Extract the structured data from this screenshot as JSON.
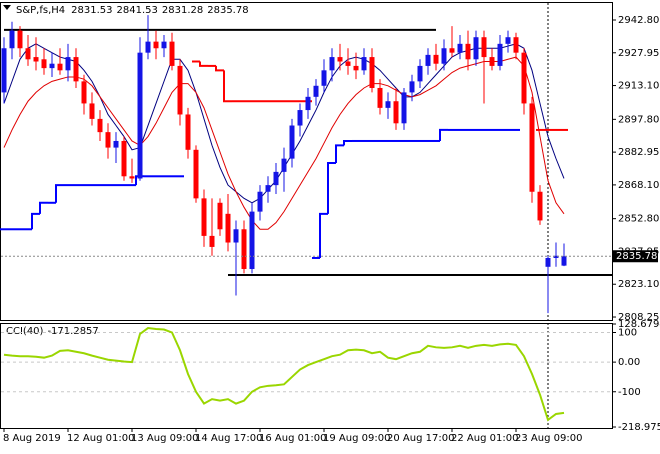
{
  "chart_data": [
    {
      "type": "candlestick",
      "title": "S&P,fs,H4",
      "up_color": "#1414e6",
      "down_color": "#ff0000",
      "categories": [
        "8 Aug 2019",
        null,
        null,
        null,
        null,
        null,
        null,
        null,
        "12 Aug 01:00",
        null,
        null,
        null,
        null,
        null,
        null,
        null,
        "13 Aug 09:00",
        null,
        null,
        null,
        null,
        null,
        null,
        null,
        "14 Aug 17:00",
        null,
        null,
        null,
        null,
        null,
        null,
        null,
        "16 Aug 01:00",
        null,
        null,
        null,
        null,
        null,
        null,
        null,
        "19 Aug 09:00",
        null,
        null,
        null,
        null,
        null,
        null,
        null,
        "20 Aug 17:00",
        null,
        null,
        null,
        null,
        null,
        null,
        null,
        "22 Aug 01:00",
        null,
        null,
        null,
        null,
        null,
        null,
        null,
        "23 Aug 09:00",
        null,
        null,
        null,
        null,
        null,
        null
      ],
      "ohlc": [
        [
          2910,
          2935,
          2905,
          2930
        ],
        [
          2930,
          2942,
          2925,
          2938
        ],
        [
          2938,
          2940,
          2926,
          2930
        ],
        [
          2930,
          2936,
          2922,
          2925
        ],
        [
          2926,
          2935,
          2920,
          2924
        ],
        [
          2925,
          2930,
          2918,
          2921
        ],
        [
          2921,
          2928,
          2917,
          2923
        ],
        [
          2923,
          2930,
          2918,
          2920
        ],
        [
          2920,
          2932,
          2915,
          2926
        ],
        [
          2926,
          2930,
          2912,
          2915
        ],
        [
          2915,
          2918,
          2900,
          2905
        ],
        [
          2905,
          2910,
          2895,
          2898
        ],
        [
          2898,
          2902,
          2888,
          2892
        ],
        [
          2892,
          2896,
          2880,
          2885
        ],
        [
          2885,
          2892,
          2878,
          2888
        ],
        [
          2888,
          2890,
          2870,
          2872
        ],
        [
          2872,
          2880,
          2869,
          2871
        ],
        [
          2871,
          2935,
          2870,
          2928
        ],
        [
          2928,
          2945,
          2925,
          2933
        ],
        [
          2933,
          2938,
          2925,
          2930
        ],
        [
          2930,
          2936,
          2926,
          2933
        ],
        [
          2933,
          2937,
          2920,
          2922
        ],
        [
          2922,
          2925,
          2895,
          2900
        ],
        [
          2900,
          2903,
          2880,
          2884
        ],
        [
          2884,
          2886,
          2860,
          2862
        ],
        [
          2862,
          2866,
          2840,
          2845
        ],
        [
          2845,
          2862,
          2836,
          2840
        ],
        [
          2860,
          2862,
          2845,
          2848
        ],
        [
          2855,
          2864,
          2838,
          2842
        ],
        [
          2842,
          2852,
          2818,
          2848
        ],
        [
          2848,
          2852,
          2828,
          2830
        ],
        [
          2830,
          2860,
          2828,
          2856
        ],
        [
          2856,
          2868,
          2852,
          2865
        ],
        [
          2865,
          2872,
          2860,
          2868
        ],
        [
          2868,
          2878,
          2864,
          2874
        ],
        [
          2874,
          2885,
          2865,
          2880
        ],
        [
          2880,
          2898,
          2876,
          2895
        ],
        [
          2895,
          2905,
          2890,
          2902
        ],
        [
          2902,
          2912,
          2898,
          2908
        ],
        [
          2908,
          2916,
          2904,
          2913
        ],
        [
          2913,
          2925,
          2910,
          2920
        ],
        [
          2920,
          2930,
          2915,
          2926
        ],
        [
          2926,
          2932,
          2920,
          2924
        ],
        [
          2924,
          2930,
          2918,
          2922
        ],
        [
          2922,
          2928,
          2916,
          2920
        ],
        [
          2920,
          2930,
          2918,
          2926
        ],
        [
          2926,
          2930,
          2910,
          2912
        ],
        [
          2912,
          2916,
          2900,
          2903
        ],
        [
          2903,
          2910,
          2898,
          2906
        ],
        [
          2906,
          2912,
          2893,
          2896
        ],
        [
          2896,
          2912,
          2893,
          2910
        ],
        [
          2910,
          2918,
          2906,
          2915
        ],
        [
          2915,
          2925,
          2912,
          2922
        ],
        [
          2922,
          2930,
          2918,
          2927
        ],
        [
          2927,
          2932,
          2920,
          2923
        ],
        [
          2923,
          2934,
          2920,
          2930
        ],
        [
          2930,
          2940,
          2926,
          2928
        ],
        [
          2928,
          2936,
          2925,
          2932
        ],
        [
          2932,
          2938,
          2920,
          2925
        ],
        [
          2925,
          2938,
          2922,
          2935
        ],
        [
          2935,
          2938,
          2905,
          2926
        ],
        [
          2926,
          2930,
          2920,
          2922
        ],
        [
          2922,
          2936,
          2920,
          2932
        ],
        [
          2932,
          2938,
          2928,
          2935
        ],
        [
          2935,
          2937,
          2925,
          2928
        ],
        [
          2928,
          2930,
          2900,
          2905
        ],
        [
          2905,
          2908,
          2860,
          2865
        ],
        [
          2865,
          2868,
          2850,
          2852
        ],
        [
          2831,
          2836,
          2810,
          2835
        ],
        [
          2835,
          2842,
          2831,
          2836
        ],
        [
          2831.53,
          2841.53,
          2831.28,
          2835.78
        ]
      ],
      "lines": [
        {
          "color": "#000080",
          "style": "line",
          "values": [
            2905,
            2915,
            2925,
            2930,
            2932,
            2930,
            2928,
            2926,
            2925,
            2924,
            2920,
            2915,
            2908,
            2900,
            2895,
            2890,
            2884,
            2885,
            2895,
            2905,
            2915,
            2925,
            2925,
            2920,
            2910,
            2898,
            2886,
            2876,
            2868,
            2865,
            2862,
            2860,
            2862,
            2866,
            2870,
            2876,
            2882,
            2888,
            2895,
            2902,
            2910,
            2917,
            2922,
            2925,
            2926,
            2925,
            2923,
            2920,
            2916,
            2912,
            2908,
            2908,
            2910,
            2914,
            2918,
            2922,
            2926,
            2928,
            2929,
            2930,
            2930,
            2930,
            2930,
            2931,
            2932,
            2930,
            2920,
            2905,
            2890,
            2880,
            2871
          ]
        },
        {
          "color": "#e00000",
          "style": "line",
          "values": [
            2885,
            2893,
            2900,
            2906,
            2910,
            2913,
            2915,
            2916,
            2917,
            2917,
            2916,
            2913,
            2908,
            2903,
            2898,
            2893,
            2888,
            2886,
            2890,
            2896,
            2903,
            2910,
            2914,
            2914,
            2910,
            2903,
            2893,
            2883,
            2873,
            2865,
            2858,
            2852,
            2848,
            2848,
            2851,
            2856,
            2862,
            2868,
            2874,
            2880,
            2887,
            2894,
            2900,
            2905,
            2909,
            2912,
            2914,
            2914,
            2913,
            2911,
            2909,
            2908,
            2909,
            2911,
            2913,
            2916,
            2919,
            2921,
            2922,
            2923,
            2924,
            2924,
            2924,
            2925,
            2926,
            2922,
            2910,
            2890,
            2870,
            2860,
            2855
          ]
        },
        {
          "color": "#0000ff",
          "style": "step",
          "values": [
            2848,
            2848,
            2848,
            2848,
            2855,
            2860,
            2860,
            2868,
            2868,
            2868,
            2868,
            2868,
            2868,
            2868,
            2868,
            2868,
            2868,
            2872,
            2872,
            2872,
            2872,
            2872,
            2872,
            null,
            null,
            null,
            null,
            null,
            null,
            null,
            null,
            null,
            null,
            null,
            null,
            null,
            null,
            null,
            null,
            2835,
            2855,
            2878,
            2886,
            2888,
            2888,
            2888,
            2888,
            2888,
            2888,
            2888,
            2888,
            2888,
            2888,
            2888,
            2888,
            2893,
            2893,
            2893,
            2893,
            2893,
            2893,
            2893,
            2893,
            2893,
            2893,
            null,
            null,
            null,
            null,
            null,
            null
          ]
        },
        {
          "color": "#ff0000",
          "style": "step",
          "values": [
            null,
            null,
            null,
            null,
            null,
            null,
            null,
            null,
            null,
            null,
            null,
            null,
            null,
            null,
            null,
            null,
            null,
            null,
            null,
            null,
            null,
            null,
            null,
            null,
            2924,
            2922,
            2922,
            2920,
            2906,
            2906,
            2906,
            2906,
            2906,
            2906,
            2906,
            2906,
            2906,
            2906,
            2906,
            null,
            null,
            null,
            null,
            null,
            null,
            null,
            null,
            null,
            null,
            null,
            null,
            null,
            null,
            null,
            null,
            null,
            null,
            null,
            null,
            null,
            null,
            null,
            null,
            null,
            null,
            null,
            null,
            2893,
            2893,
            2893,
            2893
          ]
        }
      ],
      "levels": [
        {
          "value": 2938.3,
          "from": 0,
          "to": 54
        },
        {
          "value": 2827.3,
          "from": 28,
          "to": 76
        }
      ],
      "ylim": [
        2806.9,
        2950.5
      ],
      "yticks": [
        {
          "value": 2942.8,
          "label": "2942.80"
        },
        2927.95,
        {
          "value": 2913.1,
          "label": "2913.10"
        },
        {
          "value": 2897.8,
          "label": "2897.80"
        },
        2882.95,
        {
          "value": 2868.1,
          "label": "2868.10"
        },
        {
          "value": 2852.8,
          "label": "2852.80"
        },
        2837.95,
        {
          "value": 2823.1,
          "label": "2823.10"
        },
        2808.25
      ]
    },
    {
      "type": "line",
      "title": "CCI(40)",
      "color": "#9ad600",
      "grid": true,
      "values": [
        25,
        22,
        20,
        20,
        18,
        15,
        22,
        38,
        40,
        35,
        30,
        22,
        15,
        8,
        5,
        2,
        0,
        95,
        115,
        112,
        110,
        100,
        40,
        -40,
        -100,
        -140,
        -125,
        -130,
        -125,
        -140,
        -130,
        -100,
        -85,
        -80,
        -78,
        -75,
        -50,
        -25,
        -10,
        0,
        10,
        20,
        25,
        40,
        42,
        40,
        30,
        35,
        15,
        10,
        20,
        30,
        35,
        55,
        50,
        48,
        50,
        55,
        48,
        55,
        58,
        55,
        60,
        62,
        58,
        20,
        -40,
        -110,
        -195,
        -175,
        -171.2857
      ],
      "ylim": [
        -218.9751,
        128.6794
      ],
      "yticks": [
        128.6794,
        100,
        {
          "value": 0,
          "label": "0.00"
        },
        -100,
        -218.9751
      ]
    }
  ]
}
